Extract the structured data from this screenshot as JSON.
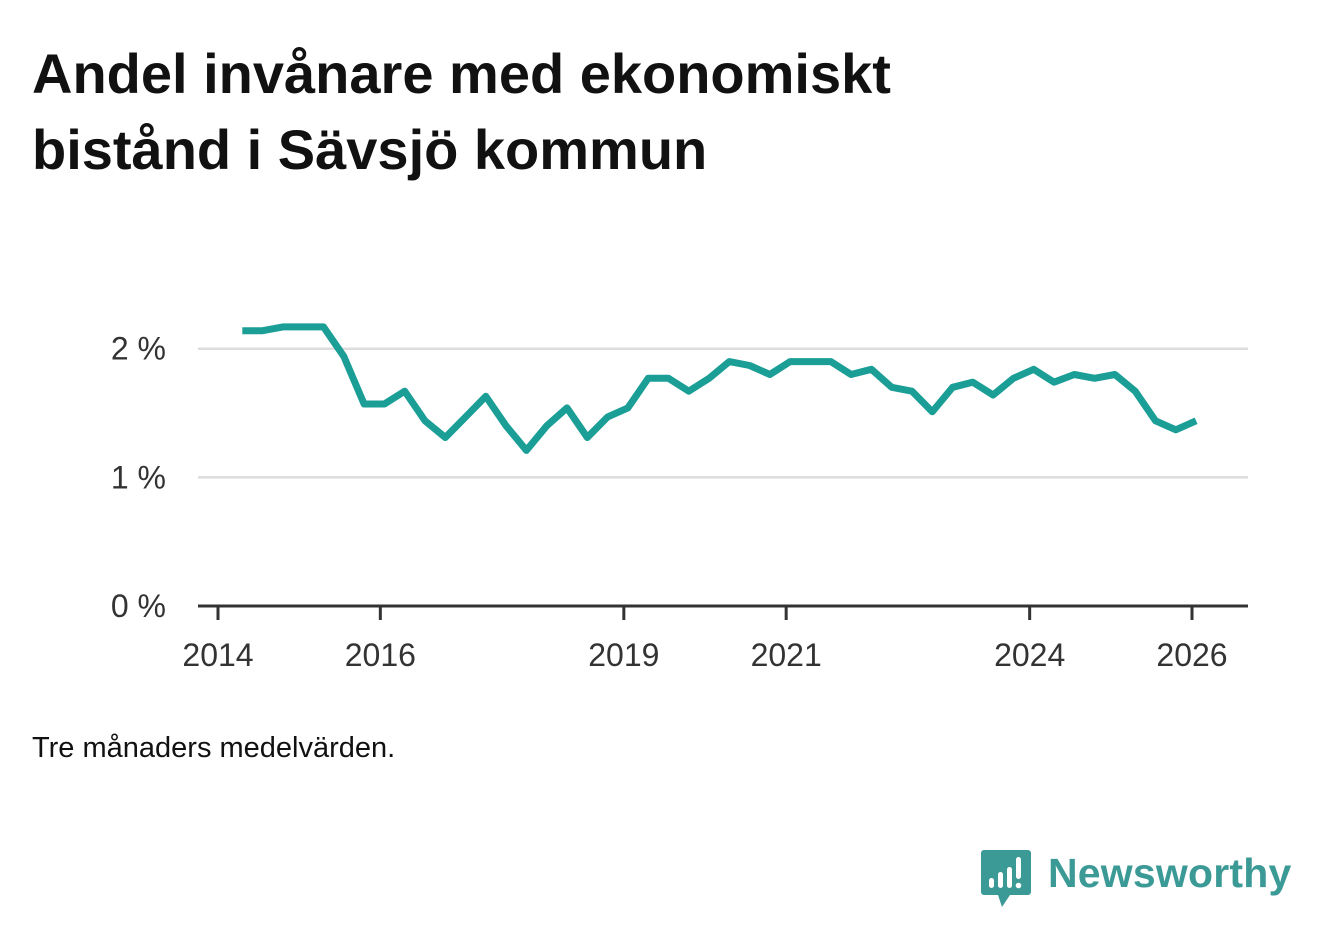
{
  "header": {
    "title_line1": "Andel invånare med ekonomiskt",
    "title_line2": "bistånd i Sävsjö kommun"
  },
  "footer": {
    "note": "Tre månaders medelvärden.",
    "brand": "Newsworthy"
  },
  "colors": {
    "line": "#1a9e96",
    "grid": "#dddddd",
    "axis": "#333333",
    "brand": "#3c9a96"
  },
  "icons": {
    "brand_logo": "bar-chart-speech-bubble-icon"
  },
  "chart_data": {
    "type": "line",
    "title": "Andel invånare med ekonomiskt bistånd i Sävsjö kommun",
    "subtitle": "",
    "xlabel": "",
    "ylabel": "",
    "ylim": [
      0,
      2.2
    ],
    "yticks": [
      0,
      1,
      2
    ],
    "ytick_labels": [
      "0 %",
      "1 %",
      "2 %"
    ],
    "xticks": [
      2014,
      2016,
      2019,
      2021,
      2024,
      2026
    ],
    "xtick_labels": [
      "2014",
      "2016",
      "2019",
      "2021",
      "2024",
      "2026"
    ],
    "xlim": [
      2014,
      2026.7
    ],
    "grid": true,
    "legend": "none",
    "series": [
      {
        "values": [
          [
            2014.3,
            2.14
          ],
          [
            2014.55,
            2.14
          ],
          [
            2014.8,
            2.17
          ],
          [
            2015.05,
            2.17
          ],
          [
            2015.3,
            2.17
          ],
          [
            2015.55,
            1.94
          ],
          [
            2015.8,
            1.57
          ],
          [
            2016.05,
            1.57
          ],
          [
            2016.3,
            1.67
          ],
          [
            2016.55,
            1.44
          ],
          [
            2016.8,
            1.31
          ],
          [
            2017.05,
            1.47
          ],
          [
            2017.3,
            1.63
          ],
          [
            2017.55,
            1.4
          ],
          [
            2017.8,
            1.21
          ],
          [
            2018.05,
            1.4
          ],
          [
            2018.3,
            1.54
          ],
          [
            2018.55,
            1.31
          ],
          [
            2018.8,
            1.47
          ],
          [
            2019.05,
            1.54
          ],
          [
            2019.3,
            1.77
          ],
          [
            2019.55,
            1.77
          ],
          [
            2019.8,
            1.67
          ],
          [
            2020.05,
            1.77
          ],
          [
            2020.3,
            1.9
          ],
          [
            2020.55,
            1.87
          ],
          [
            2020.8,
            1.8
          ],
          [
            2021.05,
            1.9
          ],
          [
            2021.3,
            1.9
          ],
          [
            2021.55,
            1.9
          ],
          [
            2021.8,
            1.8
          ],
          [
            2022.05,
            1.84
          ],
          [
            2022.3,
            1.7
          ],
          [
            2022.55,
            1.67
          ],
          [
            2022.8,
            1.51
          ],
          [
            2023.05,
            1.7
          ],
          [
            2023.3,
            1.74
          ],
          [
            2023.55,
            1.64
          ],
          [
            2023.8,
            1.77
          ],
          [
            2024.05,
            1.84
          ],
          [
            2024.3,
            1.74
          ],
          [
            2024.55,
            1.8
          ],
          [
            2024.8,
            1.77
          ],
          [
            2025.05,
            1.8
          ],
          [
            2025.3,
            1.67
          ],
          [
            2025.55,
            1.44
          ],
          [
            2025.8,
            1.37
          ],
          [
            2026.05,
            1.44
          ]
        ]
      }
    ]
  }
}
